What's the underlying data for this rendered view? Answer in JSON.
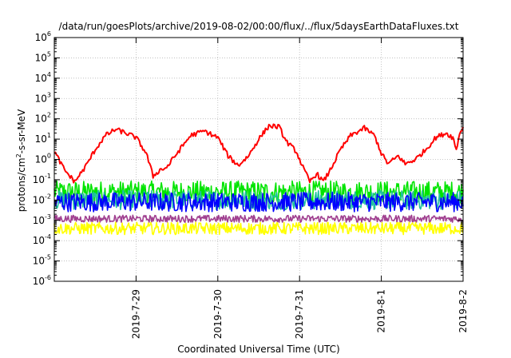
{
  "chart_data": {
    "type": "line",
    "title": "/data/run/goesPlots/archive/2019-08-02/00:00/flux/../flux/5daysEarthDataFluxes.txt",
    "xlabel": "Coordinated Universal Time (UTC)",
    "ylabel": {
      "base": "protons/cm",
      "sup": "2",
      "rest": "-s-sr-MeV"
    },
    "y_scale": "log",
    "ylim": [
      1e-06,
      1000000.0
    ],
    "y_ticks": [
      {
        "exp": "-6",
        "value": 1e-06
      },
      {
        "exp": "-5",
        "value": 1e-05
      },
      {
        "exp": "-4",
        "value": 0.0001
      },
      {
        "exp": "-3",
        "value": 0.001
      },
      {
        "exp": "-2",
        "value": 0.01
      },
      {
        "exp": "-1",
        "value": 0.1
      },
      {
        "exp": "0",
        "value": 1
      },
      {
        "exp": "1",
        "value": 10
      },
      {
        "exp": "2",
        "value": 100
      },
      {
        "exp": "3",
        "value": 1000
      },
      {
        "exp": "4",
        "value": 10000
      },
      {
        "exp": "5",
        "value": 100000
      },
      {
        "exp": "6",
        "value": 1000000
      }
    ],
    "x_range": [
      "2019-07-28T00:00",
      "2019-08-02T00:00"
    ],
    "x_ticks": [
      "2019-7-29",
      "2019-7-30",
      "2019-7-31",
      "2019-8-1",
      "2019-8-2"
    ],
    "grid": true,
    "series": [
      {
        "color": "#ff0000",
        "noise": 0.12,
        "points": [
          [
            "2019-07-28T00:00",
            2.5
          ],
          [
            "2019-07-28T03:00",
            0.3
          ],
          [
            "2019-07-28T06:00",
            0.08
          ],
          [
            "2019-07-28T09:00",
            0.4
          ],
          [
            "2019-07-28T12:00",
            3
          ],
          [
            "2019-07-28T15:00",
            15
          ],
          [
            "2019-07-28T18:00",
            30
          ],
          [
            "2019-07-28T21:00",
            20
          ],
          [
            "2019-07-29T00:00",
            12
          ],
          [
            "2019-07-29T03:00",
            2
          ],
          [
            "2019-07-29T05:00",
            0.15
          ],
          [
            "2019-07-29T07:00",
            0.3
          ],
          [
            "2019-07-29T09:00",
            0.4
          ],
          [
            "2019-07-29T12:00",
            2
          ],
          [
            "2019-07-29T16:00",
            15
          ],
          [
            "2019-07-29T20:00",
            25
          ],
          [
            "2019-07-30T00:00",
            12
          ],
          [
            "2019-07-30T03:00",
            1.5
          ],
          [
            "2019-07-30T06:00",
            0.5
          ],
          [
            "2019-07-30T09:00",
            1.5
          ],
          [
            "2019-07-30T12:00",
            10
          ],
          [
            "2019-07-30T15:00",
            45
          ],
          [
            "2019-07-30T18:00",
            40
          ],
          [
            "2019-07-30T20:00",
            8
          ],
          [
            "2019-07-30T23:00",
            2.5
          ],
          [
            "2019-07-31T01:00",
            0.4
          ],
          [
            "2019-07-31T03:00",
            0.08
          ],
          [
            "2019-07-31T05:00",
            0.2
          ],
          [
            "2019-07-31T07:00",
            0.08
          ],
          [
            "2019-07-31T09:00",
            0.3
          ],
          [
            "2019-07-31T12:00",
            3
          ],
          [
            "2019-07-31T15:00",
            15
          ],
          [
            "2019-07-31T19:00",
            35
          ],
          [
            "2019-07-31T22:00",
            15
          ],
          [
            "2019-08-01T00:00",
            2
          ],
          [
            "2019-08-01T02:00",
            0.6
          ],
          [
            "2019-08-01T05:00",
            1.5
          ],
          [
            "2019-08-01T07:00",
            0.6
          ],
          [
            "2019-08-01T10:00",
            1
          ],
          [
            "2019-08-01T13:00",
            3
          ],
          [
            "2019-08-01T16:00",
            12
          ],
          [
            "2019-08-01T19:00",
            20
          ],
          [
            "2019-08-01T21:00",
            12
          ],
          [
            "2019-08-01T22:00",
            3
          ],
          [
            "2019-08-01T23:00",
            20
          ],
          [
            "2019-08-02T00:00",
            40
          ]
        ]
      },
      {
        "color": "#00e400",
        "base": 0.025,
        "spread": 3.5
      },
      {
        "color": "#20c0a0",
        "base": 0.01,
        "spread": 3
      },
      {
        "color": "#0000ff",
        "base": 0.008,
        "spread": 3
      },
      {
        "color": "#a04090",
        "base": 0.0012,
        "spread": 1.5
      },
      {
        "color": "#ffff00",
        "base": 0.0004,
        "spread": 2
      }
    ]
  }
}
